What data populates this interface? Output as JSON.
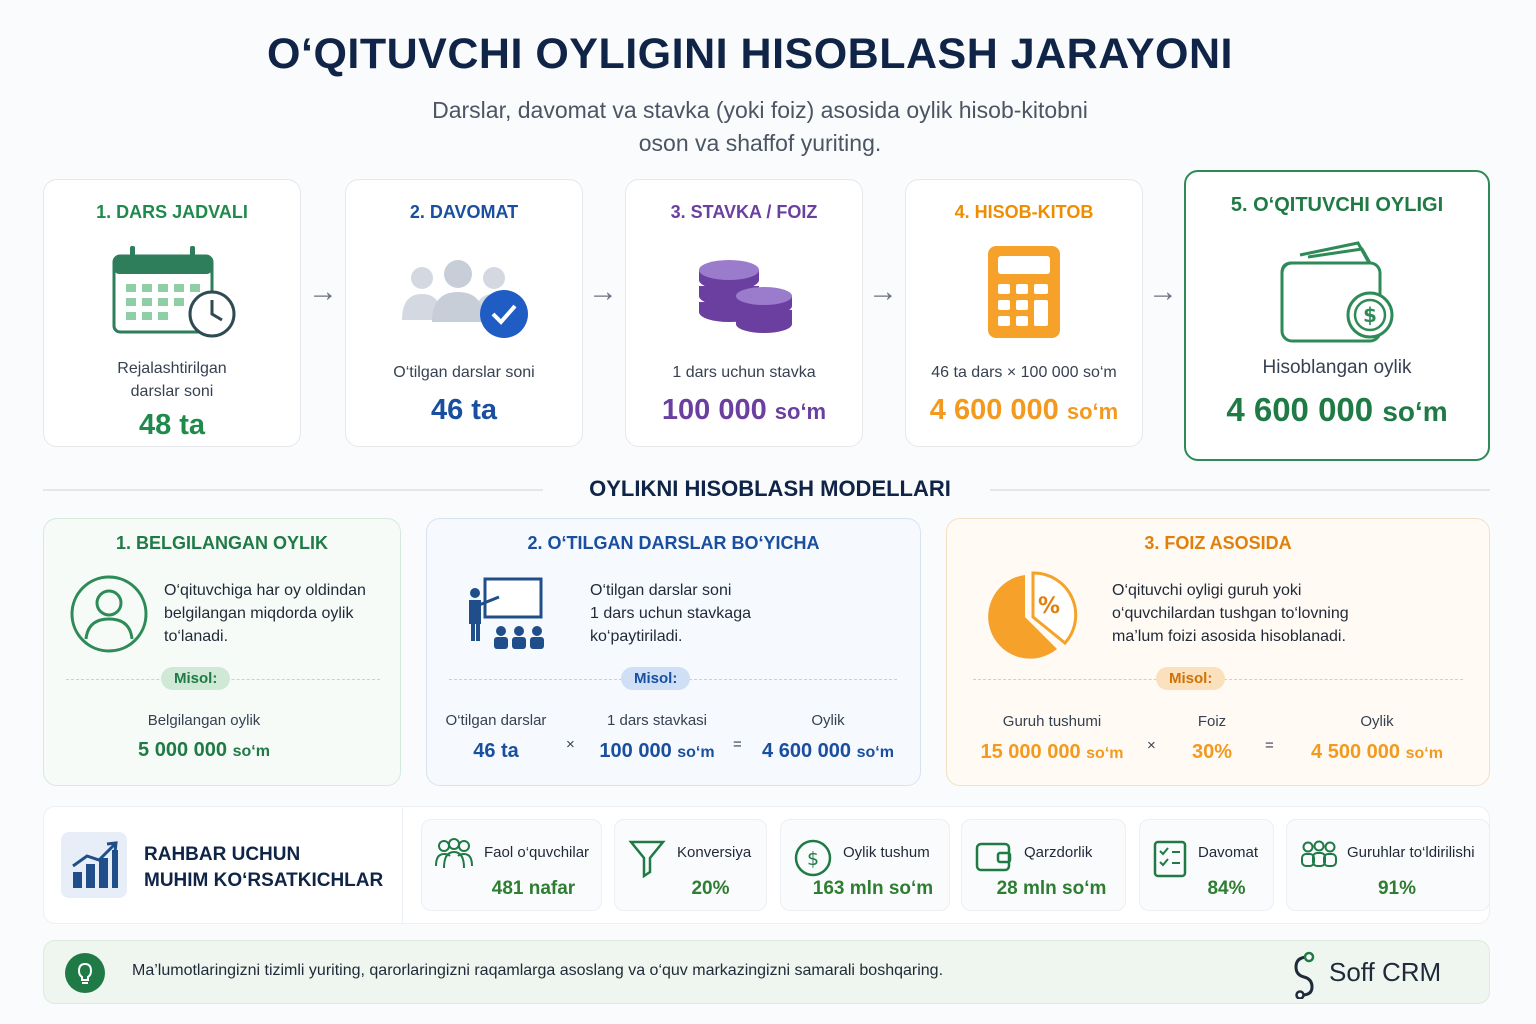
{
  "header": {
    "title": "O‘QITUVCHI OYLIGINI HISOBLASH JARAYONI",
    "subtitle_line1": "Darslar, davomat va stavka (yoki foiz) asosida oylik hisob-kitobni",
    "subtitle_line2": "oson va shaffof yuriting."
  },
  "steps": [
    {
      "title": "1. DARS JADVALI",
      "desc1": "Rejalashtirilgan",
      "desc2": "darslar soni",
      "value": "48 ta",
      "icon": "calendar-clock-icon",
      "color": "#1f8a4c"
    },
    {
      "title": "2. DAVOMAT",
      "desc1": "O‘tilgan darslar soni",
      "value": "46 ta",
      "icon": "users-check-icon",
      "color": "#1a4fa0"
    },
    {
      "title": "3. STAVKA / FOIZ",
      "desc1": "1 dars uchun stavka",
      "value": "100 000",
      "unit": "so‘m",
      "icon": "coins-icon",
      "color": "#6b3fa0"
    },
    {
      "title": "4. HISOB-KITOB",
      "desc1": "46 ta dars × 100 000 so‘m",
      "value": "4 600 000",
      "unit": "so‘m",
      "icon": "calculator-icon",
      "color": "#f39a1e"
    },
    {
      "title": "5. O‘QITUVCHI OYLIGI",
      "desc1": "Hisoblangan oylik",
      "value": "4 600 000",
      "unit": "so‘m",
      "icon": "wallet-money-icon",
      "color": "#1f8a4c"
    }
  ],
  "models_section": {
    "title": "OYLIKNI HISOBLASH MODELLARI"
  },
  "models": [
    {
      "title": "1. BELGILANGAN OYLIK",
      "desc": [
        "O‘qituvchiga har oy oldindan",
        "belgilangan miqdorda oylik",
        "to‘lanadi."
      ],
      "example": "Misol:",
      "label": "Belgilangan oylik",
      "value": "5 000 000",
      "unit": "so‘m",
      "icon": "user-circle-icon",
      "color": "#1f8a4c"
    },
    {
      "title": "2. O‘TILGAN DARSLAR BO‘YICHA",
      "desc": [
        "O‘tilgan darslar soni",
        "1 dars uchun stavkaga",
        "ko‘paytiriladi."
      ],
      "example": "Misol:",
      "labels": [
        "O‘tilgan darslar",
        "1 dars stavkasi",
        "Oylik"
      ],
      "values": [
        "46 ta",
        "100 000",
        "4 600 000"
      ],
      "unit": "so‘m",
      "ops": [
        "×",
        "="
      ],
      "icon": "teacher-board-icon",
      "color": "#1a4fa0"
    },
    {
      "title": "3. FOIZ ASOSIDA",
      "desc": [
        "O‘qituvchi oyligi guruh yoki",
        "o‘quvchilardan tushgan to‘lovning",
        "ma’lum foizi asosida hisoblanadi."
      ],
      "example": "Misol:",
      "labels": [
        "Guruh tushumi",
        "Foiz",
        "Oylik"
      ],
      "values": [
        "15 000 000",
        "30%",
        "4 500 000"
      ],
      "unit": "so‘m",
      "ops": [
        "×",
        "="
      ],
      "icon": "percent-pie-icon",
      "color": "#f39a1e"
    }
  ],
  "kpi": {
    "lead_line1": "RAHBAR UCHUN",
    "lead_line2": "MUHIM KO‘RSATKICHLAR",
    "items": [
      {
        "label": "Faol o‘quvchilar",
        "value": "481 nafar",
        "icon": "students-icon"
      },
      {
        "label": "Konversiya",
        "value": "20%",
        "icon": "funnel-icon"
      },
      {
        "label": "Oylik tushum",
        "value": "163 mln so‘m",
        "icon": "dollar-coin-icon"
      },
      {
        "label": "Qarzdorlik",
        "value": "28 mln so‘m",
        "icon": "wallet-icon"
      },
      {
        "label": "Davomat",
        "value": "84%",
        "icon": "checklist-icon"
      },
      {
        "label": "Guruhlar to‘ldirilishi",
        "value": "91%",
        "icon": "groups-icon"
      }
    ]
  },
  "footer": {
    "text": "Ma’lumotlaringizni tizimli yuriting, qarorlaringizni raqamlarga asoslang va o‘quv markazingizni samarali boshqaring.",
    "brand": "Soff CRM",
    "icon": "lightbulb-icon"
  }
}
